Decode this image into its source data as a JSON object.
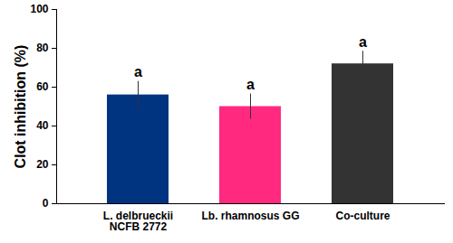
{
  "chart_data": {
    "type": "bar",
    "y_label": "Clot inhibition (%)",
    "categories": [
      "L. delbrueckii NCFB 2772",
      "Lb. rhamnosus GG",
      "Co-culture"
    ],
    "values": [
      56,
      50,
      72
    ],
    "errors": [
      7,
      6.5,
      6.5
    ],
    "annotations": [
      "a",
      "a",
      "a"
    ],
    "colors": [
      "#003380",
      "#ff2a7f",
      "#333333"
    ],
    "ylim": [
      0,
      100
    ],
    "yticks": [
      0,
      20,
      40,
      60,
      80,
      100
    ],
    "grid": false
  }
}
